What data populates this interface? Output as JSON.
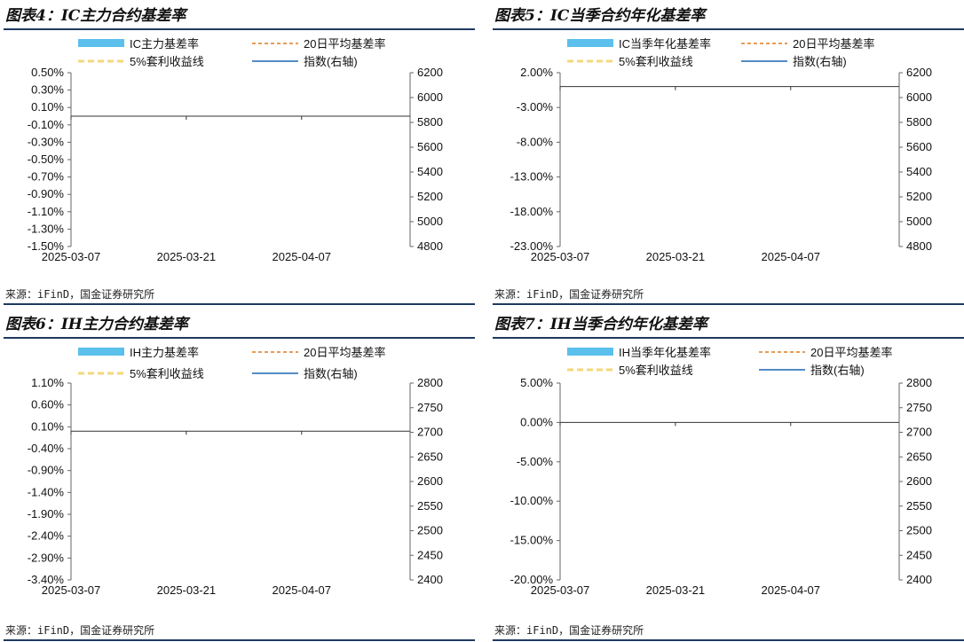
{
  "source_text": "来源：iFinD，国金证券研究所",
  "colors": {
    "bar": "#5bc0eb",
    "ma20": "#e07b1f",
    "line5": "#f5d77a",
    "index": "#1a66b3",
    "rule": "#1f3a5f"
  },
  "chart_data": [
    {
      "type": "bar",
      "title": "图表4：IC主力合约基差率",
      "x_ticks": [
        "2025-03-07",
        "2025-03-21",
        "2025-04-07"
      ],
      "y_left_ticks": [
        "0.50%",
        "0.30%",
        "0.10%",
        "-0.10%",
        "-0.30%",
        "-0.50%",
        "-0.70%",
        "-0.90%",
        "-1.10%",
        "-1.30%",
        "-1.50%"
      ],
      "y_right_ticks": [
        "6200",
        "6000",
        "5800",
        "5600",
        "5400",
        "5200",
        "5000",
        "4800"
      ],
      "y_left_range": [
        -1.5,
        0.5
      ],
      "y_right_range": [
        4800,
        6200
      ],
      "legend": [
        "IC主力基差率",
        "20日平均基差率",
        "5%套利收益线",
        "指数(右轴)"
      ],
      "series": [
        {
          "name": "IC主力基差率",
          "type": "bar",
          "values": []
        },
        {
          "name": "20日平均基差率",
          "type": "line",
          "values": []
        },
        {
          "name": "5%套利收益线",
          "type": "line",
          "values": []
        },
        {
          "name": "指数(右轴)",
          "type": "line",
          "axis": "right",
          "values": []
        }
      ]
    },
    {
      "type": "bar",
      "title": "图表5：IC当季合约年化基差率",
      "x_ticks": [
        "2025-03-07",
        "2025-03-21",
        "2025-04-07"
      ],
      "y_left_ticks": [
        "2.00%",
        "-3.00%",
        "-8.00%",
        "-13.00%",
        "-18.00%",
        "-23.00%"
      ],
      "y_right_ticks": [
        "6200",
        "6000",
        "5800",
        "5600",
        "5400",
        "5200",
        "5000",
        "4800"
      ],
      "y_left_range": [
        -23,
        2
      ],
      "y_right_range": [
        4800,
        6200
      ],
      "legend": [
        "IC当季年化基差率",
        "20日平均基差率",
        "5%套利收益线",
        "指数(右轴)"
      ],
      "series": [
        {
          "name": "IC当季年化基差率",
          "type": "bar",
          "values": []
        },
        {
          "name": "20日平均基差率",
          "type": "line",
          "values": []
        },
        {
          "name": "5%套利收益线",
          "type": "line",
          "values": []
        },
        {
          "name": "指数(右轴)",
          "type": "line",
          "axis": "right",
          "values": []
        }
      ]
    },
    {
      "type": "bar",
      "title": "图表6：IH主力合约基差率",
      "x_ticks": [
        "2025-03-07",
        "2025-03-21",
        "2025-04-07"
      ],
      "y_left_ticks": [
        "1.10%",
        "0.60%",
        "0.10%",
        "-0.40%",
        "-0.90%",
        "-1.40%",
        "-1.90%",
        "-2.40%",
        "-2.90%",
        "-3.40%"
      ],
      "y_right_ticks": [
        "2800",
        "2750",
        "2700",
        "2650",
        "2600",
        "2550",
        "2500",
        "2450",
        "2400"
      ],
      "y_left_range": [
        -3.4,
        1.1
      ],
      "y_right_range": [
        2400,
        2800
      ],
      "legend": [
        "IH主力基差率",
        "20日平均基差率",
        "5%套利收益线",
        "指数(右轴)"
      ],
      "series": [
        {
          "name": "IH主力基差率",
          "type": "bar",
          "values": []
        },
        {
          "name": "20日平均基差率",
          "type": "line",
          "values": []
        },
        {
          "name": "5%套利收益线",
          "type": "line",
          "values": []
        },
        {
          "name": "指数(右轴)",
          "type": "line",
          "axis": "right",
          "values": []
        }
      ]
    },
    {
      "type": "bar",
      "title": "图表7：IH当季合约年化基差率",
      "x_ticks": [
        "2025-03-07",
        "2025-03-21",
        "2025-04-07"
      ],
      "y_left_ticks": [
        "5.00%",
        "0.00%",
        "-5.00%",
        "-10.00%",
        "-15.00%",
        "-20.00%"
      ],
      "y_right_ticks": [
        "2800",
        "2750",
        "2700",
        "2650",
        "2600",
        "2550",
        "2500",
        "2450",
        "2400"
      ],
      "y_left_range": [
        -20,
        5
      ],
      "y_right_range": [
        2400,
        2800
      ],
      "legend": [
        "IH当季年化基差率",
        "20日平均基差率",
        "5%套利收益线",
        "指数(右轴)"
      ],
      "series": [
        {
          "name": "IH当季年化基差率",
          "type": "bar",
          "values": []
        },
        {
          "name": "20日平均基差率",
          "type": "line",
          "values": []
        },
        {
          "name": "5%套利收益线",
          "type": "line",
          "values": []
        },
        {
          "name": "指数(右轴)",
          "type": "line",
          "axis": "right",
          "values": []
        }
      ]
    }
  ]
}
